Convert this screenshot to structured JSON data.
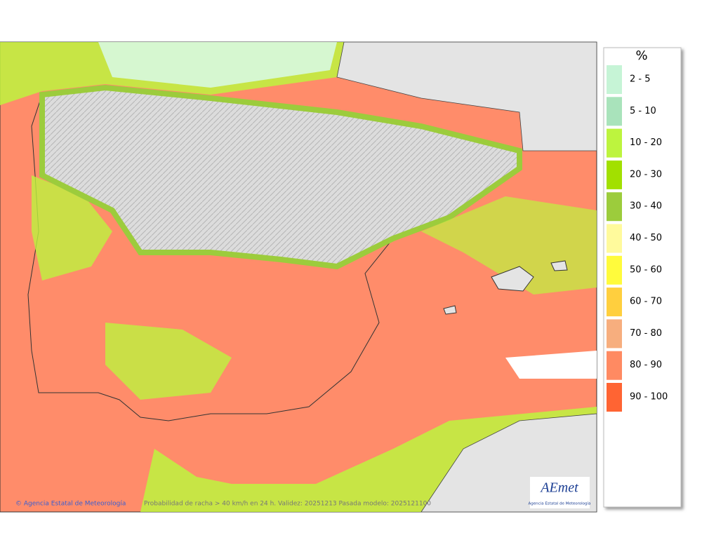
{
  "legend": {
    "title": "%",
    "items": [
      {
        "label": "2 - 5",
        "color": "#c6f4d6"
      },
      {
        "label": "5 - 10",
        "color": "#a9e3bb"
      },
      {
        "label": "10 - 20",
        "color": "#bdf43e"
      },
      {
        "label": "20 - 30",
        "color": "#a2e000"
      },
      {
        "label": "30 - 40",
        "color": "#9ccc3c"
      },
      {
        "label": "40 - 50",
        "color": "#fffa9c"
      },
      {
        "label": "50 - 60",
        "color": "#fffb3c"
      },
      {
        "label": "60 - 70",
        "color": "#ffcf3e"
      },
      {
        "label": "70 - 80",
        "color": "#f7ae7e"
      },
      {
        "label": "80 - 90",
        "color": "#ff8a62"
      },
      {
        "label": "90 - 100",
        "color": "#ff6433"
      }
    ]
  },
  "footer": {
    "credit": "© Agencia Estatal de Meteorología",
    "caption": "Probabilidad de racha > 40 km/h en 24 h. Validez: 20251213 Pasada modelo: 2025121100"
  },
  "logo": {
    "name": "AEmet",
    "subtitle": "Agencia Estatal de Meteorología"
  }
}
